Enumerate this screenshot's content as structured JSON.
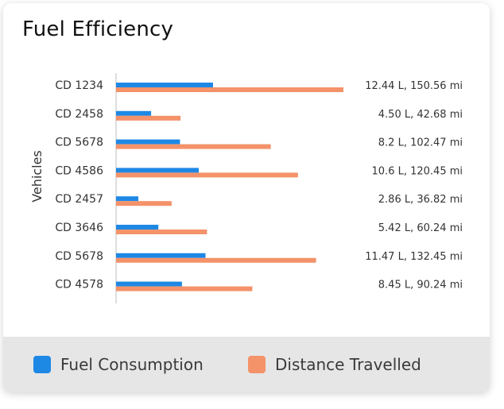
{
  "title": "Fuel Efficiency",
  "colors": {
    "fuel": "#1E88E5",
    "distance": "#F4926A",
    "axis": "#bdbdbd",
    "text": "#333333"
  },
  "legend": {
    "fuel_label": "Fuel Consumption",
    "distance_label": "Distance Travelled"
  },
  "chart_data": {
    "type": "bar",
    "orientation": "horizontal",
    "ylabel": "Vehicles",
    "categories": [
      "CD 1234",
      "CD 2458",
      "CD 5678",
      "CD 4586",
      "CD 2457",
      "CD 3646",
      "CD 5678",
      "CD 4578"
    ],
    "series": [
      {
        "name": "Fuel Consumption",
        "unit": "L",
        "values": [
          12.44,
          4.5,
          8.2,
          10.6,
          2.86,
          5.42,
          11.47,
          8.45
        ]
      },
      {
        "name": "Distance Travelled",
        "unit": "mi",
        "values": [
          150.56,
          42.68,
          102.47,
          120.45,
          36.82,
          60.24,
          132.45,
          90.24
        ]
      }
    ],
    "value_labels": [
      "12.44 L,  150.56 mi",
      "4.50 L,  42.68 mi",
      "8.2 L,  102.47 mi",
      "10.6 L,  120.45 mi",
      "2.86 L,  36.82 mi",
      "5.42 L,  60.24 mi",
      "11.47 L,  132.45 mi",
      "8.45 L,  90.24 mi"
    ],
    "grid": false,
    "legend_position": "bottom"
  }
}
